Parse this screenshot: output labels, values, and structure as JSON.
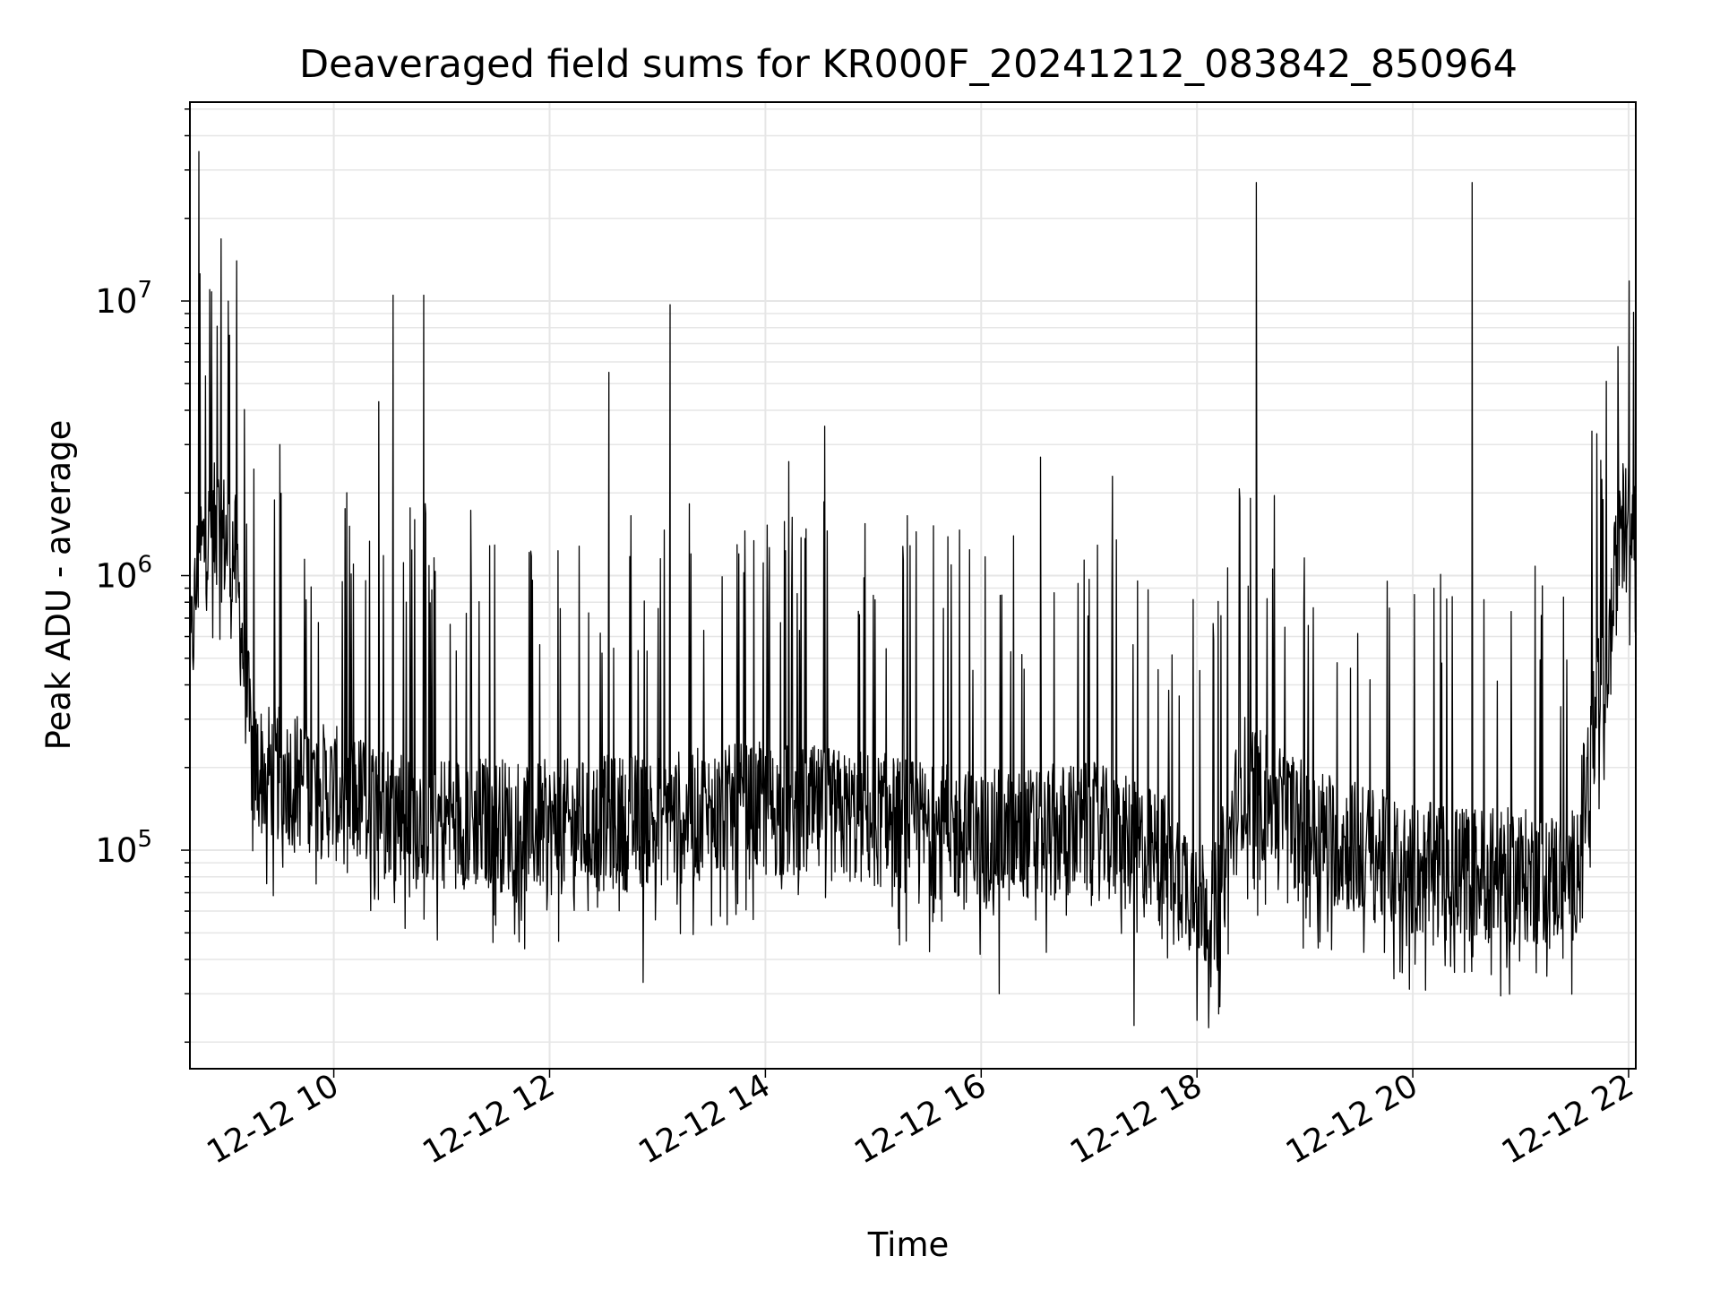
{
  "chart_data": {
    "type": "line",
    "title": "Deaveraged field sums for KR000F_20241212_083842_850964",
    "xlabel": "Time",
    "ylabel": "Peak ADU - average",
    "x_scale": "time",
    "y_scale": "log",
    "xlim": [
      "2024-12-12 08:40",
      "2024-12-12 22:04"
    ],
    "ylim": [
      16000,
      53000000
    ],
    "x_ticks": [
      "12-12 10",
      "12-12 12",
      "12-12 14",
      "12-12 16",
      "12-12 18",
      "12-12 20",
      "12-12 22"
    ],
    "y_ticks": [
      {
        "base": "10",
        "exp": "5",
        "value": 100000
      },
      {
        "base": "10",
        "exp": "6",
        "value": 1000000
      },
      {
        "base": "10",
        "exp": "7",
        "value": 10000000
      }
    ],
    "grid": true,
    "line_color": "#000000",
    "grid_color": "#e6e6e6",
    "series": [
      {
        "baseline": [
          [
            "2024-12-12 08:40",
            450000
          ],
          [
            "2024-12-12 08:45",
            1200000
          ],
          [
            "2024-12-12 08:55",
            1500000
          ],
          [
            "2024-12-12 09:05",
            1200000
          ],
          [
            "2024-12-12 09:15",
            200000
          ],
          [
            "2024-12-12 09:40",
            180000
          ],
          [
            "2024-12-12 10:00",
            160000
          ],
          [
            "2024-12-12 11:00",
            130000
          ],
          [
            "2024-12-12 12:00",
            120000
          ],
          [
            "2024-12-12 13:00",
            130000
          ],
          [
            "2024-12-12 14:00",
            140000
          ],
          [
            "2024-12-12 15:00",
            130000
          ],
          [
            "2024-12-12 16:00",
            110000
          ],
          [
            "2024-12-12 17:00",
            120000
          ],
          [
            "2024-12-12 17:45",
            90000
          ],
          [
            "2024-12-12 18:10",
            60000
          ],
          [
            "2024-12-12 18:25",
            180000
          ],
          [
            "2024-12-12 19:00",
            120000
          ],
          [
            "2024-12-12 20:00",
            85000
          ],
          [
            "2024-12-12 21:00",
            80000
          ],
          [
            "2024-12-12 21:30",
            80000
          ],
          [
            "2024-12-12 21:40",
            250000
          ],
          [
            "2024-12-12 21:50",
            600000
          ],
          [
            "2024-12-12 21:55",
            1500000
          ],
          [
            "2024-12-12 22:04",
            1600000
          ]
        ],
        "spikes": [
          [
            "2024-12-12 08:45",
            35000000
          ],
          [
            "2024-12-12 08:51",
            11000000
          ],
          [
            "2024-12-12 09:06",
            14000000
          ],
          [
            "2024-12-12 09:02",
            7500000
          ],
          [
            "2024-12-12 09:30",
            3000000
          ],
          [
            "2024-12-12 10:25",
            4300000
          ],
          [
            "2024-12-12 10:33",
            10500000
          ],
          [
            "2024-12-12 10:50",
            10500000
          ],
          [
            "2024-12-12 10:45",
            1600000
          ],
          [
            "2024-12-12 12:33",
            5500000
          ],
          [
            "2024-12-12 13:07",
            9700000
          ],
          [
            "2024-12-12 14:13",
            2600000
          ],
          [
            "2024-12-12 14:33",
            3500000
          ],
          [
            "2024-12-12 16:33",
            2700000
          ],
          [
            "2024-12-12 17:13",
            2300000
          ],
          [
            "2024-12-12 18:33",
            27000000
          ],
          [
            "2024-12-12 20:33",
            27000000
          ],
          [
            "2024-12-12 22:00",
            2600000
          ]
        ],
        "dips": [
          [
            "2024-12-12 12:52",
            33000
          ],
          [
            "2024-12-12 16:10",
            30000
          ],
          [
            "2024-12-12 17:25",
            23000
          ],
          [
            "2024-12-12 18:00",
            24000
          ],
          [
            "2024-12-12 20:18",
            38000
          ]
        ]
      }
    ]
  }
}
